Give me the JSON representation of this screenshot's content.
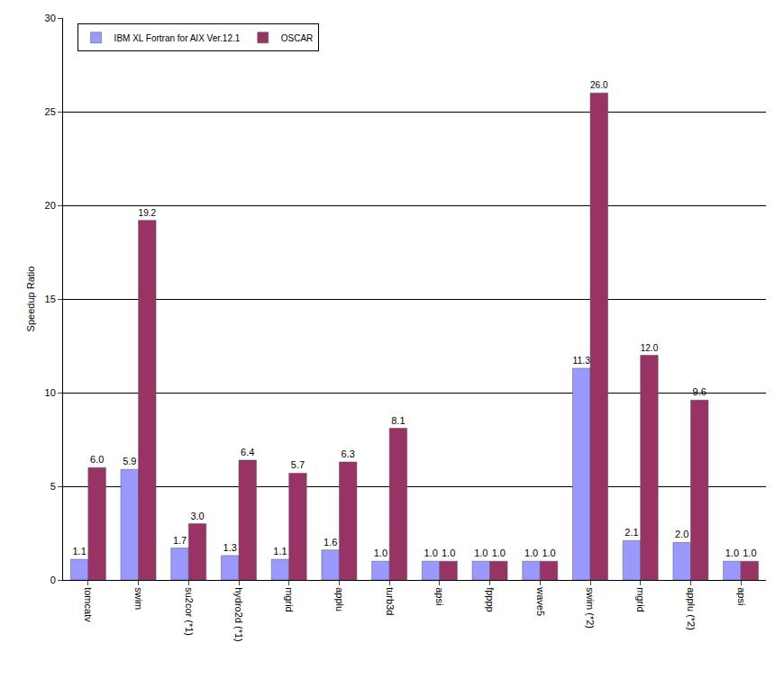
{
  "chart_data": {
    "type": "bar",
    "y_label": "Speedup Ratio",
    "categories": [
      "tomcatv",
      "swim",
      "su2cor (*1)",
      "hydro2d (*1)",
      "mgrid",
      "applu",
      "turb3d",
      "apsi",
      "fpppp",
      "wave5",
      "swim (*2)",
      "mgrid",
      "applu (*2)",
      "apsi"
    ],
    "series": [
      {
        "name": "IBM XL Fortran for AIX Ver.12.1",
        "color": "#9999ff",
        "values": [
          1.1,
          5.9,
          1.7,
          1.3,
          1.1,
          1.6,
          1.0,
          1.0,
          1.0,
          1.0,
          11.3,
          2.1,
          2.0,
          1.0
        ],
        "value_labels": [
          "1.1",
          "5.9",
          "1.7",
          "1.3",
          "1.1",
          "1.6",
          "1.0",
          "1.0",
          "1.0",
          "1.0",
          "11.3",
          "2.1",
          "2.0",
          "1.0"
        ]
      },
      {
        "name": "OSCAR",
        "color": "#993366",
        "values": [
          6.0,
          19.2,
          3.0,
          6.4,
          5.7,
          6.3,
          8.1,
          1.0,
          1.0,
          1.0,
          26.0,
          12.0,
          9.6,
          1.0
        ],
        "value_labels": [
          "6.0",
          "19.2",
          "3.0",
          "6.4",
          "5.7",
          "6.3",
          "8.1",
          "1.0",
          "1.0",
          "1.0",
          "26.0",
          "12.0",
          "9.6",
          "1.0"
        ]
      }
    ],
    "ylim": [
      0,
      30
    ],
    "yticks": [
      0,
      5,
      10,
      15,
      20,
      25,
      30
    ],
    "grid": true,
    "legend": "upper left",
    "data_labels": true
  }
}
